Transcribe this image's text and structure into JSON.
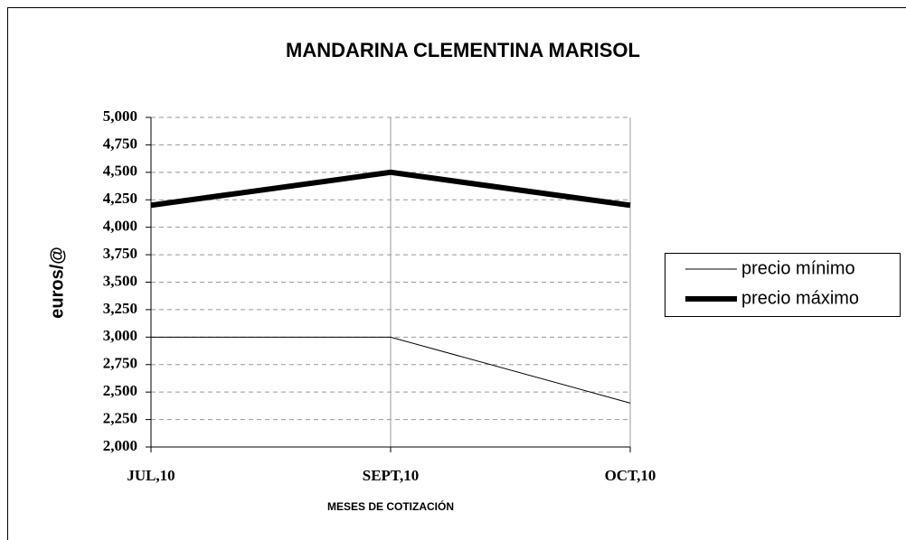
{
  "chart_data": {
    "type": "line",
    "title": "MANDARINA CLEMENTINA MARISOL",
    "x_label": "MESES DE COTIZACIÓN",
    "y_label": "euros/@",
    "categories": [
      "JUL,10",
      "SEPT,10",
      "OCT,10"
    ],
    "series": [
      {
        "name": "precio mínimo",
        "color": "#000000",
        "values": [
          3,
          3,
          2.4
        ]
      },
      {
        "name": "precio máximo",
        "color": "#000000",
        "values": [
          4.2,
          4.5,
          4.2
        ]
      }
    ],
    "ylim": [
      2,
      5
    ],
    "yticks": [
      {
        "value": 2,
        "label": "2,000"
      },
      {
        "value": 2.25,
        "label": "2,250"
      },
      {
        "value": 2.5,
        "label": "2,500"
      },
      {
        "value": 2.75,
        "label": "2,750"
      },
      {
        "value": 3,
        "label": "3,000"
      },
      {
        "value": 3.25,
        "label": "3,250"
      },
      {
        "value": 3.5,
        "label": "3,500"
      },
      {
        "value": 3.75,
        "label": "3,750"
      },
      {
        "value": 4,
        "label": "4,000"
      },
      {
        "value": 4.25,
        "label": "4,250"
      },
      {
        "value": 4.5,
        "label": "4,500"
      },
      {
        "value": 4.75,
        "label": "4,750"
      },
      {
        "value": 5,
        "label": "5,000"
      }
    ],
    "grid": true,
    "legend": "right"
  }
}
